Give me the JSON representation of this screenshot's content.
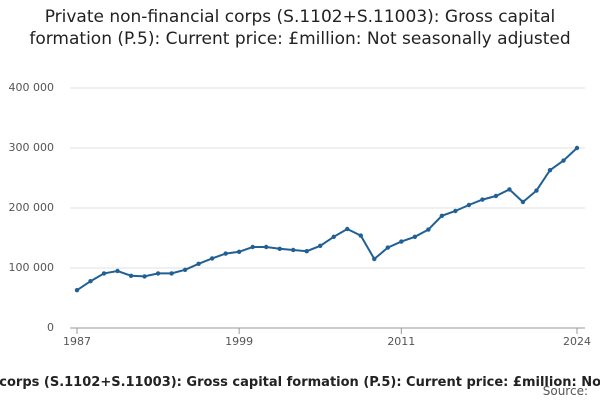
{
  "chart_data": {
    "type": "line",
    "title": "Private non-financial corps (S.1102+S.11003): Gross capital formation (P.5): Current price: £million: Not seasonally adjusted",
    "x": [
      1987,
      1988,
      1989,
      1990,
      1991,
      1992,
      1993,
      1994,
      1995,
      1996,
      1997,
      1998,
      1999,
      2000,
      2001,
      2002,
      2003,
      2004,
      2005,
      2006,
      2007,
      2008,
      2009,
      2010,
      2011,
      2012,
      2013,
      2014,
      2015,
      2016,
      2017,
      2018,
      2019,
      2020,
      2021,
      2022,
      2023,
      2024
    ],
    "series": [
      {
        "name": "Private non-financial corps (S.1102+S.11003): Gross capital formation (P.5): Current price: £million: Not seasonally adjusted",
        "color": "#206095",
        "values": [
          63000,
          78000,
          91000,
          95000,
          87000,
          86000,
          91000,
          91000,
          97000,
          107000,
          116000,
          124000,
          127000,
          135000,
          135000,
          132000,
          130000,
          128000,
          137000,
          152000,
          165000,
          154000,
          115000,
          134000,
          144000,
          152000,
          164000,
          187000,
          195000,
          205000,
          214000,
          220000,
          231000,
          210000,
          229000,
          263000,
          279000,
          300000
        ]
      }
    ],
    "xlim": [
      1987,
      2024
    ],
    "xticks": [
      1987,
      1999,
      2011,
      2024
    ],
    "ylim": [
      0,
      400000
    ],
    "yticks": [
      0,
      {
        "value": 100000,
        "label": "100 000"
      },
      {
        "value": 200000,
        "label": "200 000"
      },
      {
        "value": 300000,
        "label": "300 000"
      },
      {
        "value": 400000,
        "label": "400 000"
      }
    ],
    "grid": true,
    "source": "Source:"
  }
}
